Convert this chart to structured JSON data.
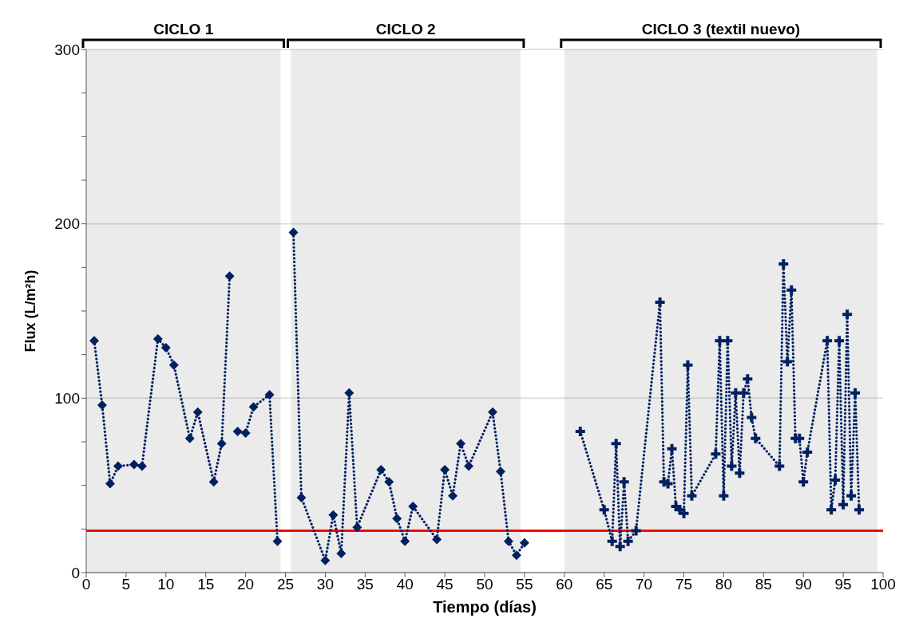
{
  "chart_data": {
    "type": "line",
    "xlabel": "Tiempo (días)",
    "ylabel": "Flux  (L/m²h)",
    "xlim": [
      0,
      100
    ],
    "xticks": [
      0,
      5,
      10,
      15,
      20,
      25,
      30,
      35,
      40,
      45,
      50,
      55,
      60,
      65,
      70,
      75,
      80,
      85,
      90,
      95,
      100
    ],
    "ylim": [
      0,
      300
    ],
    "yticks": [
      0,
      {
        "value": 25,
        "label": null
      },
      {
        "value": 50,
        "label": null
      },
      {
        "value": 75,
        "label": null
      },
      100,
      {
        "value": 125,
        "label": null
      },
      {
        "value": 150,
        "label": null
      },
      {
        "value": 175,
        "label": null
      },
      200,
      {
        "value": 225,
        "label": null
      },
      {
        "value": 250,
        "label": null
      },
      {
        "value": 275,
        "label": null
      },
      300
    ],
    "grid": "y",
    "line_style": "dotted",
    "series": [
      {
        "color": "#002060",
        "marker": "diamond",
        "x": [
          1,
          2,
          3,
          4,
          6,
          7,
          9,
          10,
          11,
          13,
          14,
          16,
          17,
          18,
          18.5,
          19,
          20,
          21,
          23,
          24
        ],
        "values": [
          133,
          96,
          51,
          61,
          62,
          61,
          134,
          129,
          119,
          77,
          92,
          52,
          74,
          170,
          null,
          81,
          80,
          95,
          102,
          18
        ]
      },
      {
        "color": "#002060",
        "marker": "diamond",
        "x": [
          26,
          27,
          30,
          31,
          32,
          33,
          34,
          37,
          38,
          39,
          40,
          41,
          44,
          45,
          46,
          47,
          48,
          51,
          52,
          53,
          54,
          55
        ],
        "values": [
          195,
          43,
          7,
          33,
          11,
          103,
          26,
          59,
          52,
          31,
          18,
          38,
          19,
          59,
          44,
          74,
          61,
          92,
          58,
          18,
          10,
          17
        ]
      },
      {
        "color": "#002060",
        "marker": "cross",
        "x": [
          62,
          65,
          66,
          66.5,
          67,
          67.5,
          68,
          69,
          72,
          72.5,
          73,
          73.5,
          74,
          74.5,
          75,
          75.5,
          76,
          79,
          79.5,
          80,
          80.5,
          81,
          81.5,
          82,
          82.5,
          83,
          83.5,
          84,
          87,
          87.5,
          88,
          88.5,
          89,
          89.5,
          90,
          90.5,
          93,
          93.5,
          94,
          94.5,
          95,
          95.5,
          96,
          96.5,
          97
        ],
        "values": [
          81,
          36,
          18,
          74,
          15,
          52,
          18,
          24,
          155,
          52,
          51,
          71,
          38,
          36,
          34,
          119,
          44,
          68,
          133,
          44,
          133,
          61,
          103,
          57,
          103,
          111,
          89,
          77,
          61,
          177,
          121,
          162,
          77,
          77,
          52,
          69,
          133,
          36,
          53,
          133,
          39,
          148,
          44,
          103,
          36
        ]
      }
    ],
    "ref_lines": [
      {
        "axis": "y",
        "value": 24,
        "color": "#ff0000",
        "line_style": "solid"
      }
    ],
    "bands": [
      {
        "axis": "x",
        "from": 0,
        "to": 24.4,
        "label": "CICLO 1",
        "color": "#ebebeb"
      },
      {
        "axis": "x",
        "from": 25.7,
        "to": 54.5,
        "label": "CICLO 2",
        "color": "#ebebeb"
      },
      {
        "axis": "x",
        "from": 60,
        "to": 99.3,
        "label": "CICLO 3 (textil nuevo)",
        "color": "#ebebeb"
      }
    ]
  }
}
